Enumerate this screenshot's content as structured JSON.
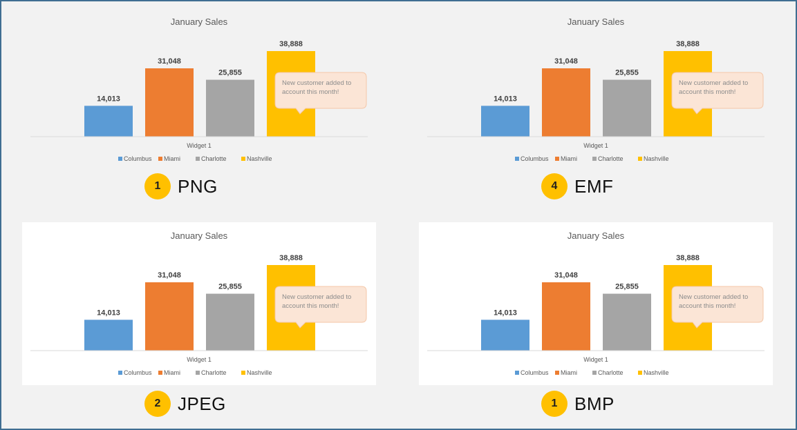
{
  "colors": {
    "Columbus": "#5b9bd5",
    "Miami": "#ed7d31",
    "Charlotte": "#a5a5a5",
    "Nashville": "#ffc000",
    "badge": "#ffc000"
  },
  "chart_data": [
    {
      "type": "bar",
      "title": "January Sales",
      "xlabel": "Widget 1",
      "categories": [
        "Widget 1"
      ],
      "series": [
        {
          "name": "Columbus",
          "values": [
            14013
          ],
          "label": "14,013"
        },
        {
          "name": "Miami",
          "values": [
            31048
          ],
          "label": "31,048"
        },
        {
          "name": "Charlotte",
          "values": [
            25855
          ],
          "label": "25,855"
        },
        {
          "name": "Nashville",
          "values": [
            38888
          ],
          "label": "38,888"
        }
      ],
      "callout": {
        "line1": "New customer added to",
        "line2": "account this month!"
      },
      "legend": "bottom",
      "ylim": [
        0,
        38888
      ],
      "grid": false,
      "format": {
        "rank": "1",
        "label": "PNG"
      }
    },
    {
      "type": "bar",
      "title": "January Sales",
      "xlabel": "Widget 1",
      "categories": [
        "Widget 1"
      ],
      "series": [
        {
          "name": "Columbus",
          "values": [
            14013
          ],
          "label": "14,013"
        },
        {
          "name": "Miami",
          "values": [
            31048
          ],
          "label": "31,048"
        },
        {
          "name": "Charlotte",
          "values": [
            25855
          ],
          "label": "25,855"
        },
        {
          "name": "Nashville",
          "values": [
            38888
          ],
          "label": "38,888"
        }
      ],
      "callout": {
        "line1": "New customer added to",
        "line2": "account this month!"
      },
      "legend": "bottom",
      "ylim": [
        0,
        38888
      ],
      "grid": false,
      "format": {
        "rank": "4",
        "label": "EMF"
      }
    },
    {
      "type": "bar",
      "title": "January Sales",
      "xlabel": "Widget 1",
      "categories": [
        "Widget 1"
      ],
      "series": [
        {
          "name": "Columbus",
          "values": [
            14013
          ],
          "label": "14,013"
        },
        {
          "name": "Miami",
          "values": [
            31048
          ],
          "label": "31,048"
        },
        {
          "name": "Charlotte",
          "values": [
            25855
          ],
          "label": "25,855"
        },
        {
          "name": "Nashville",
          "values": [
            38888
          ],
          "label": "38,888"
        }
      ],
      "callout": {
        "line1": "New customer added to",
        "line2": "account this month!"
      },
      "legend": "bottom",
      "ylim": [
        0,
        38888
      ],
      "grid": false,
      "format": {
        "rank": "2",
        "label": "JPEG"
      }
    },
    {
      "type": "bar",
      "title": "January Sales",
      "xlabel": "Widget 1",
      "categories": [
        "Widget 1"
      ],
      "series": [
        {
          "name": "Columbus",
          "values": [
            14013
          ],
          "label": "14,013"
        },
        {
          "name": "Miami",
          "values": [
            31048
          ],
          "label": "31,048"
        },
        {
          "name": "Charlotte",
          "values": [
            25855
          ],
          "label": "25,855"
        },
        {
          "name": "Nashville",
          "values": [
            38888
          ],
          "label": "38,888"
        }
      ],
      "callout": {
        "line1": "New customer added to",
        "line2": "account this month!"
      },
      "legend": "bottom",
      "ylim": [
        0,
        38888
      ],
      "grid": false,
      "format": {
        "rank": "1",
        "label": "BMP"
      }
    }
  ]
}
